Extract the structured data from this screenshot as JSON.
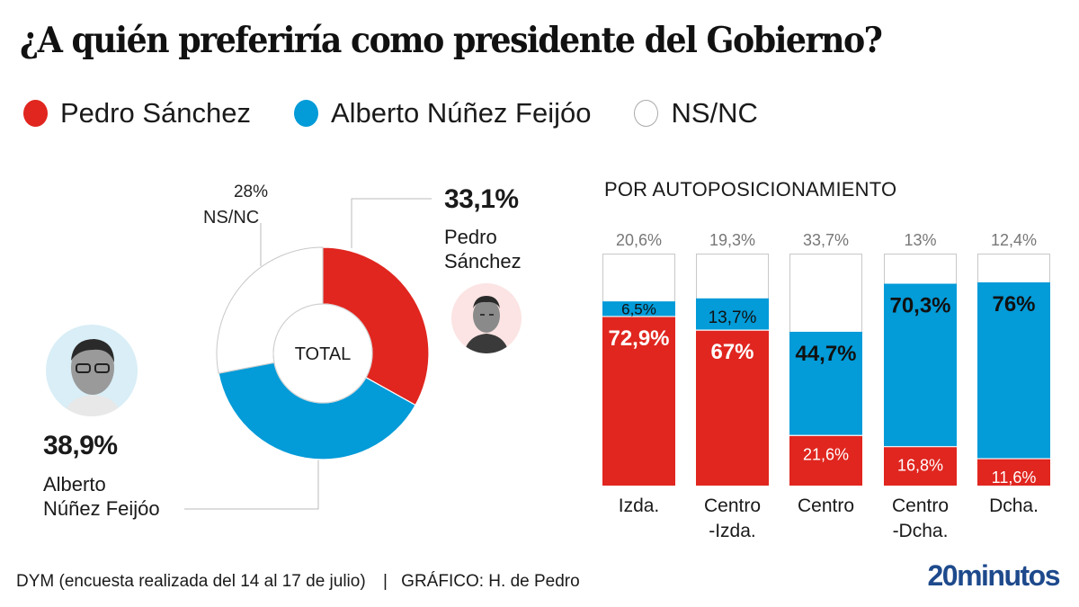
{
  "title": "¿A quién preferiría como presidente del Gobierno?",
  "colors": {
    "sanchez": "#e0261f",
    "feijoo": "#039bd8",
    "nsnc": "#ffffff",
    "border": "#c8c8c8"
  },
  "legend": [
    {
      "label": "Pedro Sánchez",
      "color": "#e0261f"
    },
    {
      "label": "Alberto Núñez Feijóo",
      "color": "#039bd8"
    },
    {
      "label": "NS/NC",
      "color": "#ffffff"
    }
  ],
  "donut": {
    "center_label": "TOTAL",
    "sanchez": {
      "pct_label": "33,1%",
      "name_line1": "Pedro",
      "name_line2": "Sánchez"
    },
    "feijoo": {
      "pct_label": "38,9%",
      "name_line1": "Alberto",
      "name_line2": "Núñez Feijóo"
    },
    "nsnc": {
      "pct_label": "28%",
      "name": "NS/NC"
    }
  },
  "bars_section_title": "POR AUTOPOSICIONAMIENTO",
  "footer": {
    "source": "DYM (encuesta realizada del 14 al 17 de julio)",
    "separator": "|",
    "credit": "GRÁFICO: H. de Pedro"
  },
  "brand": "20minutos",
  "chart_data": [
    {
      "type": "pie",
      "title": "TOTAL",
      "categories": [
        "Pedro Sánchez",
        "Alberto Núñez Feijóo",
        "NS/NC"
      ],
      "values": [
        33.1,
        38.9,
        28
      ],
      "labels": [
        "33,1%",
        "38,9%",
        "28%"
      ],
      "hole": true,
      "start": "top",
      "direction": "clockwise"
    },
    {
      "type": "bar",
      "stacked": true,
      "orientation": "vertical",
      "title": "POR AUTOPOSICIONAMIENTO",
      "categories": [
        "Izda.",
        "Centro\n-Izda.",
        "Centro",
        "Centro\n-Dcha.",
        "Dcha."
      ],
      "category_lines": [
        [
          "Izda."
        ],
        [
          "Centro",
          "-Izda."
        ],
        [
          "Centro"
        ],
        [
          "Centro",
          "-Dcha."
        ],
        [
          "Dcha."
        ]
      ],
      "series": [
        {
          "name": "Pedro Sánchez",
          "values": [
            72.9,
            67,
            21.6,
            16.8,
            11.6
          ],
          "labels": [
            "72,9%",
            "67%",
            "21,6%",
            "16,8%",
            "11,6%"
          ]
        },
        {
          "name": "Alberto Núñez Feijóo",
          "values": [
            6.5,
            13.7,
            44.7,
            70.3,
            76
          ],
          "labels": [
            "6,5%",
            "13,7%",
            "44,7%",
            "70,3%",
            "76%"
          ]
        },
        {
          "name": "NS/NC",
          "values": [
            20.6,
            19.3,
            33.7,
            13,
            12.4
          ],
          "labels": [
            "20,6%",
            "19,3%",
            "33,7%",
            "13%",
            "12,4%"
          ]
        }
      ],
      "ylim": [
        0,
        100
      ],
      "grid": false,
      "legend": "top-left"
    }
  ]
}
